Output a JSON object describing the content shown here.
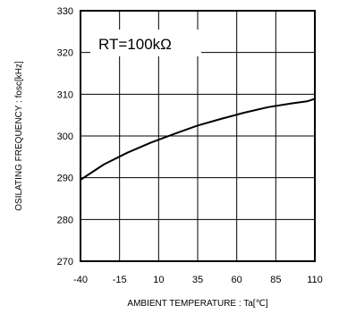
{
  "chart_data": {
    "type": "line",
    "title": "",
    "xlabel": "AMBIENT TEMPERATURE : Ta[℃]",
    "ylabel": "OSILATING FREQUENCY : fosc[kHz]",
    "xlim": [
      -40,
      110
    ],
    "ylim": [
      270,
      330
    ],
    "grid": true,
    "legend": "none",
    "annotation": "RT=100kΩ",
    "x_ticks": [
      "-40",
      "-15",
      "10",
      "35",
      "60",
      "85",
      "110"
    ],
    "y_ticks": [
      "270",
      "280",
      "290",
      "300",
      "310",
      "320",
      "330"
    ],
    "x_tick_values": [
      -40,
      -15,
      10,
      35,
      60,
      85,
      110
    ],
    "y_tick_values": [
      270,
      280,
      290,
      300,
      310,
      320,
      330
    ],
    "series": [
      {
        "x": [
          -40,
          -25,
          -10,
          5,
          20,
          35,
          50,
          65,
          80,
          95,
          105,
          110
        ],
        "y": [
          289.5,
          293.2,
          296.0,
          298.4,
          300.5,
          302.5,
          304.1,
          305.6,
          306.9,
          307.8,
          308.3,
          308.9
        ]
      }
    ]
  },
  "colors": {
    "line": "#000000",
    "grid": "#000000",
    "background": "#ffffff"
  }
}
